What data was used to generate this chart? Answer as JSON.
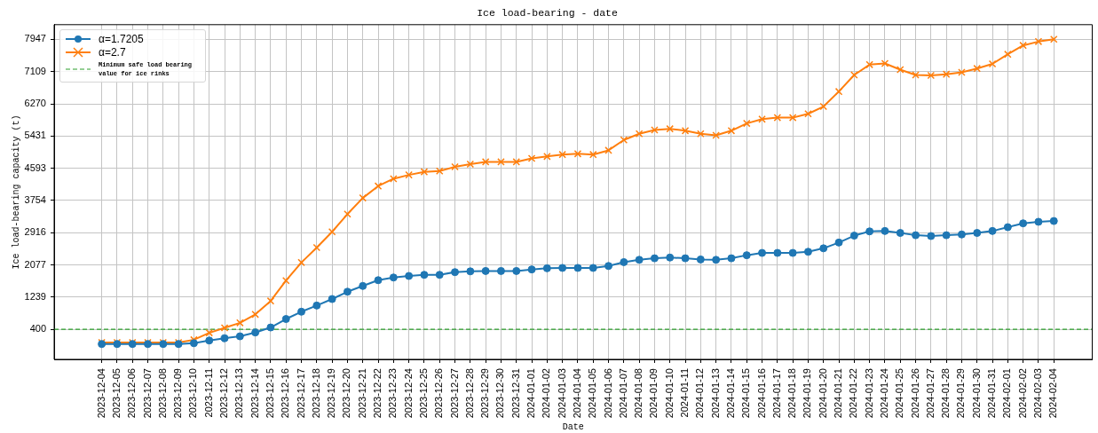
{
  "chart_data": {
    "type": "line",
    "title": "Ice load-bearing - date",
    "xlabel": "Date",
    "ylabel": "Ice load-bearing capacity (t)",
    "categories": [
      "2023-12-04",
      "2023-12-05",
      "2023-12-06",
      "2023-12-07",
      "2023-12-08",
      "2023-12-09",
      "2023-12-10",
      "2023-12-11",
      "2023-12-12",
      "2023-12-13",
      "2023-12-14",
      "2023-12-15",
      "2023-12-16",
      "2023-12-17",
      "2023-12-18",
      "2023-12-19",
      "2023-12-20",
      "2023-12-21",
      "2023-12-22",
      "2023-12-23",
      "2023-12-24",
      "2023-12-25",
      "2023-12-26",
      "2023-12-27",
      "2023-12-28",
      "2023-12-29",
      "2023-12-30",
      "2023-12-31",
      "2024-01-01",
      "2024-01-02",
      "2024-01-03",
      "2024-01-04",
      "2024-01-05",
      "2024-01-06",
      "2024-01-07",
      "2024-01-08",
      "2024-01-09",
      "2024-01-10",
      "2024-01-11",
      "2024-01-12",
      "2024-01-13",
      "2024-01-14",
      "2024-01-15",
      "2024-01-16",
      "2024-01-17",
      "2024-01-18",
      "2024-01-19",
      "2024-01-20",
      "2024-01-21",
      "2024-01-22",
      "2024-01-23",
      "2024-01-24",
      "2024-01-25",
      "2024-01-26",
      "2024-01-27",
      "2024-01-28",
      "2024-01-29",
      "2024-01-30",
      "2024-01-31",
      "2024-02-01",
      "2024-02-02",
      "2024-02-03",
      "2024-02-04"
    ],
    "series": [
      {
        "name": "α=1.7205",
        "color": "#1f77b4",
        "marker": "circle",
        "values": [
          20,
          20,
          20,
          20,
          20,
          20,
          40,
          110,
          170,
          220,
          320,
          450,
          670,
          860,
          1020,
          1190,
          1380,
          1530,
          1680,
          1750,
          1790,
          1820,
          1820,
          1890,
          1910,
          1920,
          1920,
          1920,
          1960,
          1990,
          2000,
          2000,
          2000,
          2050,
          2150,
          2210,
          2250,
          2270,
          2250,
          2220,
          2210,
          2250,
          2330,
          2390,
          2390,
          2390,
          2420,
          2510,
          2660,
          2840,
          2950,
          2960,
          2910,
          2850,
          2830,
          2850,
          2870,
          2910,
          2960,
          3060,
          3160,
          3200,
          3220
        ]
      },
      {
        "name": "α=2.7",
        "color": "#ff7f0e",
        "marker": "cross",
        "values": [
          60,
          60,
          60,
          60,
          60,
          60,
          130,
          310,
          440,
          570,
          790,
          1140,
          1670,
          2140,
          2530,
          2940,
          3400,
          3820,
          4130,
          4320,
          4420,
          4500,
          4520,
          4630,
          4700,
          4760,
          4760,
          4760,
          4850,
          4900,
          4950,
          4970,
          4950,
          5060,
          5330,
          5490,
          5590,
          5620,
          5570,
          5490,
          5450,
          5570,
          5760,
          5870,
          5910,
          5910,
          6010,
          6200,
          6590,
          7020,
          7290,
          7320,
          7160,
          7020,
          7010,
          7040,
          7090,
          7190,
          7310,
          7560,
          7790,
          7890,
          7950
        ]
      }
    ],
    "ylim": [
      -380,
      8330
    ],
    "yticks": [
      400,
      1239,
      2077,
      2916,
      3754,
      4593,
      5431,
      6270,
      7109,
      7947
    ],
    "ref_lines": [
      {
        "axis": "y",
        "value": 400,
        "label": "Minimum safe load bearing value for ice rinks",
        "color": "#2ca02c",
        "line_style": "dashed"
      }
    ],
    "grid": true,
    "legend": "top left"
  }
}
